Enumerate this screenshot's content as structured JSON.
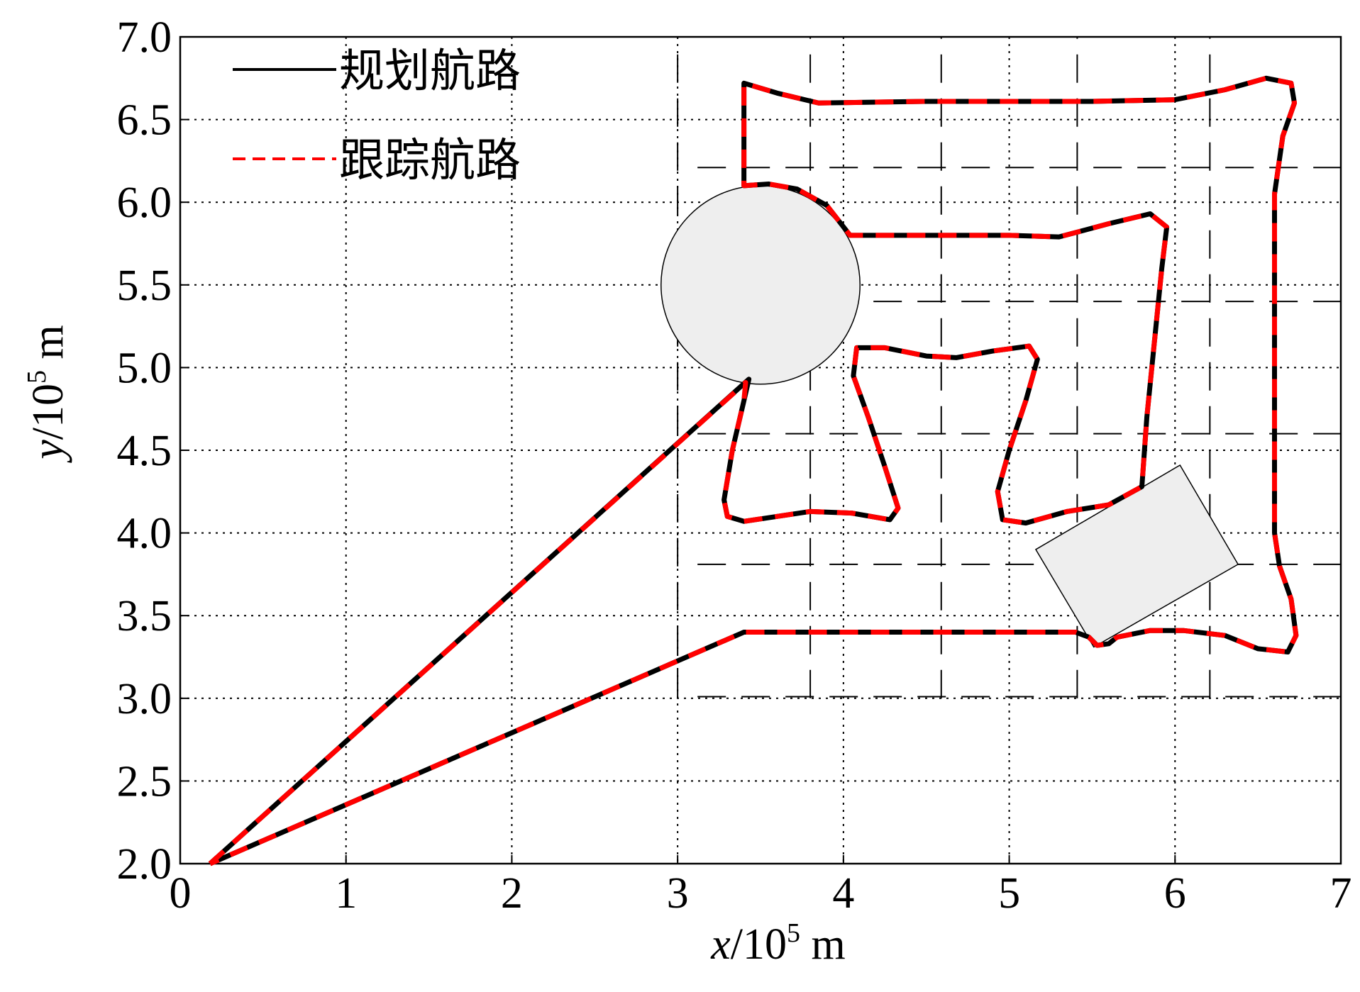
{
  "chart_data": {
    "type": "line",
    "xlabel": [
      "x",
      "/10",
      "5",
      " m"
    ],
    "ylabel": [
      "y",
      "/10",
      "5",
      " m"
    ],
    "xlim": [
      0,
      7
    ],
    "ylim": [
      2,
      7
    ],
    "xticks": [
      0,
      1,
      2,
      3,
      4,
      5,
      6,
      7
    ],
    "yticks": [
      {
        "value": 2,
        "label": "2.0"
      },
      {
        "value": 2.5,
        "label": "2.5"
      },
      {
        "value": 3,
        "label": "3.0"
      },
      {
        "value": 3.5,
        "label": "3.5"
      },
      {
        "value": 4,
        "label": "4.0"
      },
      {
        "value": 4.5,
        "label": "4.5"
      },
      {
        "value": 5,
        "label": "5.0"
      },
      {
        "value": 5.5,
        "label": "5.5"
      },
      {
        "value": 6,
        "label": "6.0"
      },
      {
        "value": 6.5,
        "label": "6.5"
      },
      {
        "value": 7,
        "label": "7.0"
      }
    ],
    "grid": true,
    "legend": "upper-left",
    "series": [
      {
        "name": "规划航路",
        "color": "#000000",
        "style": "solid",
        "x": [
          0.18,
          3.43,
          3.4,
          3.33,
          3.28,
          3.3,
          3.4,
          3.6,
          3.8,
          4.05,
          4.28,
          4.33,
          4.25,
          4.15,
          4.06,
          4.08,
          4.25,
          4.5,
          4.68,
          4.9,
          5.12,
          5.17,
          5.1,
          5.0,
          4.93,
          4.96,
          5.1,
          5.35,
          5.6,
          5.8,
          5.83,
          5.88,
          5.92,
          5.95,
          5.85,
          5.6,
          5.3,
          5.0,
          4.5,
          4.04,
          3.9,
          3.72,
          3.55,
          3.4,
          3.4,
          3.6,
          3.85,
          4.5,
          5.5,
          6.0,
          6.3,
          6.55,
          6.7,
          6.72,
          6.65,
          6.6,
          6.6,
          6.6,
          6.63,
          6.7,
          6.73,
          6.68,
          6.5,
          6.3,
          6.05,
          5.85,
          5.65,
          5.6,
          5.53,
          5.48,
          5.4,
          4.5,
          3.4,
          0.18
        ],
        "values": [
          2.0,
          4.93,
          4.8,
          4.5,
          4.2,
          4.1,
          4.07,
          4.1,
          4.13,
          4.12,
          4.08,
          4.15,
          4.4,
          4.7,
          4.95,
          5.12,
          5.12,
          5.07,
          5.06,
          5.1,
          5.13,
          5.05,
          4.8,
          4.5,
          4.25,
          4.08,
          4.06,
          4.13,
          4.17,
          4.28,
          4.7,
          5.2,
          5.6,
          5.85,
          5.93,
          5.87,
          5.79,
          5.8,
          5.8,
          5.8,
          5.98,
          6.08,
          6.11,
          6.1,
          6.72,
          6.66,
          6.6,
          6.61,
          6.61,
          6.62,
          6.68,
          6.75,
          6.72,
          6.6,
          6.4,
          6.05,
          5.0,
          4.0,
          3.8,
          3.6,
          3.38,
          3.28,
          3.3,
          3.38,
          3.41,
          3.41,
          3.37,
          3.33,
          3.32,
          3.37,
          3.4,
          3.4,
          3.4,
          2.0
        ]
      },
      {
        "name": "跟踪航路",
        "color": "#ff0000",
        "style": "dashed",
        "x": [
          0.18,
          3.41,
          3.4,
          3.33,
          3.28,
          3.3,
          3.4,
          3.6,
          3.8,
          4.05,
          4.28,
          4.33,
          4.25,
          4.15,
          4.06,
          4.08,
          4.25,
          4.5,
          4.68,
          4.9,
          5.12,
          5.17,
          5.1,
          5.0,
          4.93,
          4.96,
          5.1,
          5.35,
          5.6,
          5.8,
          5.83,
          5.88,
          5.92,
          5.95,
          5.85,
          5.6,
          5.3,
          5.0,
          4.5,
          4.04,
          3.9,
          3.72,
          3.55,
          3.4,
          3.4,
          3.6,
          3.85,
          4.5,
          5.5,
          6.0,
          6.3,
          6.55,
          6.7,
          6.72,
          6.65,
          6.6,
          6.6,
          6.6,
          6.63,
          6.7,
          6.73,
          6.68,
          6.5,
          6.3,
          6.05,
          5.85,
          5.65,
          5.6,
          5.53,
          5.48,
          5.4,
          4.5,
          3.4,
          0.18
        ],
        "values": [
          2.0,
          4.91,
          4.8,
          4.5,
          4.2,
          4.1,
          4.07,
          4.1,
          4.13,
          4.12,
          4.08,
          4.15,
          4.4,
          4.7,
          4.95,
          5.12,
          5.12,
          5.07,
          5.06,
          5.1,
          5.13,
          5.05,
          4.8,
          4.5,
          4.25,
          4.08,
          4.06,
          4.13,
          4.17,
          4.28,
          4.7,
          5.2,
          5.6,
          5.85,
          5.93,
          5.87,
          5.79,
          5.8,
          5.8,
          5.8,
          5.98,
          6.08,
          6.11,
          6.1,
          6.72,
          6.66,
          6.6,
          6.61,
          6.61,
          6.62,
          6.68,
          6.75,
          6.72,
          6.6,
          6.4,
          6.05,
          5.0,
          4.0,
          3.8,
          3.6,
          3.38,
          3.28,
          3.3,
          3.38,
          3.41,
          3.41,
          3.37,
          3.33,
          3.32,
          3.37,
          3.4,
          3.4,
          3.4,
          2.0
        ]
      }
    ],
    "obstacles": [
      {
        "shape": "circle",
        "center": [
          3.5,
          5.5
        ],
        "radius": 0.6
      },
      {
        "shape": "polygon",
        "x": [
          5.16,
          6.03,
          6.38,
          5.51
        ],
        "y": [
          3.9,
          4.41,
          3.81,
          3.31
        ]
      }
    ],
    "region_grid": {
      "x": [
        3.0,
        3.8,
        4.59,
        5.41,
        6.21
      ],
      "y": [
        3.01,
        3.81,
        4.6,
        5.4,
        6.21
      ],
      "x_extent": [
        3.12,
        7
      ],
      "y_extent": [
        3.0,
        7
      ]
    }
  }
}
